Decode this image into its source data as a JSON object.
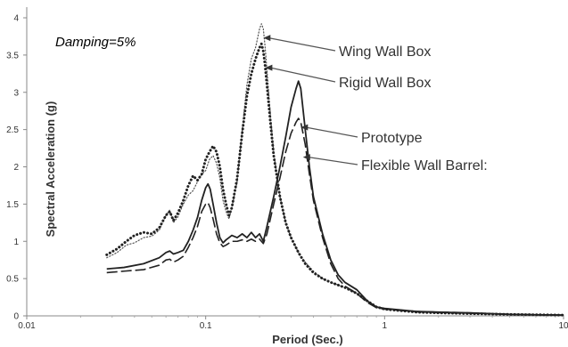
{
  "chart_data": {
    "type": "line",
    "title": "",
    "xlabel": "Period (Sec.)",
    "ylabel": "Spectral  Acceleration (g)",
    "xscale": "log",
    "xlim": [
      0.01,
      10
    ],
    "ylim": [
      0,
      4.2
    ],
    "grid": false,
    "x_ticks": [
      {
        "v": 0.01,
        "label": "0.01"
      },
      {
        "v": 0.1,
        "label": "0.1"
      },
      {
        "v": 1,
        "label": "1"
      },
      {
        "v": 10,
        "label": "10"
      }
    ],
    "y_ticks": [
      {
        "v": 0,
        "label": "0"
      },
      {
        "v": 0.5,
        "label": "0.5"
      },
      {
        "v": 1,
        "label": "1"
      },
      {
        "v": 1.5,
        "label": "1.5"
      },
      {
        "v": 2,
        "label": "2"
      },
      {
        "v": 2.5,
        "label": "2.5"
      },
      {
        "v": 3,
        "label": "3"
      },
      {
        "v": 3.5,
        "label": "3.5"
      },
      {
        "v": 4,
        "label": "4"
      }
    ],
    "annotation": "Damping=5%",
    "series": [
      {
        "name": "Wing Wall Box",
        "style": "dotted-thin",
        "color": "#555555",
        "label_x": 0.21,
        "label_y": 3.73,
        "points": [
          [
            0.028,
            0.78
          ],
          [
            0.032,
            0.85
          ],
          [
            0.036,
            0.95
          ],
          [
            0.04,
            0.98
          ],
          [
            0.045,
            1.05
          ],
          [
            0.05,
            1.07
          ],
          [
            0.055,
            1.15
          ],
          [
            0.06,
            1.35
          ],
          [
            0.063,
            1.42
          ],
          [
            0.066,
            1.25
          ],
          [
            0.07,
            1.33
          ],
          [
            0.075,
            1.5
          ],
          [
            0.08,
            1.62
          ],
          [
            0.085,
            1.68
          ],
          [
            0.09,
            1.8
          ],
          [
            0.095,
            1.9
          ],
          [
            0.1,
            1.95
          ],
          [
            0.105,
            2.1
          ],
          [
            0.11,
            2.15
          ],
          [
            0.115,
            2.05
          ],
          [
            0.12,
            1.85
          ],
          [
            0.125,
            1.55
          ],
          [
            0.13,
            1.4
          ],
          [
            0.135,
            1.3
          ],
          [
            0.14,
            1.45
          ],
          [
            0.15,
            1.8
          ],
          [
            0.16,
            2.5
          ],
          [
            0.17,
            3.1
          ],
          [
            0.18,
            3.45
          ],
          [
            0.19,
            3.6
          ],
          [
            0.2,
            3.85
          ],
          [
            0.205,
            3.92
          ],
          [
            0.21,
            3.85
          ],
          [
            0.215,
            3.6
          ],
          [
            0.22,
            3.3
          ],
          [
            0.23,
            2.7
          ],
          [
            0.24,
            2.2
          ],
          [
            0.26,
            1.6
          ],
          [
            0.28,
            1.25
          ],
          [
            0.3,
            1.05
          ],
          [
            0.33,
            0.85
          ],
          [
            0.36,
            0.72
          ],
          [
            0.4,
            0.6
          ],
          [
            0.45,
            0.5
          ],
          [
            0.5,
            0.45
          ],
          [
            0.6,
            0.38
          ],
          [
            0.7,
            0.3
          ],
          [
            0.8,
            0.2
          ],
          [
            0.9,
            0.12
          ],
          [
            1.0,
            0.09
          ],
          [
            1.5,
            0.05
          ],
          [
            2.0,
            0.04
          ],
          [
            3.0,
            0.03
          ],
          [
            5.0,
            0.02
          ],
          [
            7.0,
            0.015
          ],
          [
            10.0,
            0.01
          ]
        ]
      },
      {
        "name": "Rigid Wall Box",
        "style": "dotted-bold",
        "color": "#222222",
        "label_x": 0.215,
        "label_y": 3.33,
        "points": [
          [
            0.028,
            0.82
          ],
          [
            0.032,
            0.9
          ],
          [
            0.036,
            1.0
          ],
          [
            0.04,
            1.08
          ],
          [
            0.045,
            1.12
          ],
          [
            0.05,
            1.1
          ],
          [
            0.055,
            1.18
          ],
          [
            0.06,
            1.35
          ],
          [
            0.063,
            1.4
          ],
          [
            0.066,
            1.28
          ],
          [
            0.07,
            1.38
          ],
          [
            0.075,
            1.55
          ],
          [
            0.08,
            1.75
          ],
          [
            0.085,
            1.88
          ],
          [
            0.09,
            1.82
          ],
          [
            0.095,
            1.9
          ],
          [
            0.1,
            2.1
          ],
          [
            0.105,
            2.2
          ],
          [
            0.11,
            2.28
          ],
          [
            0.115,
            2.2
          ],
          [
            0.12,
            2.0
          ],
          [
            0.125,
            1.7
          ],
          [
            0.13,
            1.5
          ],
          [
            0.135,
            1.35
          ],
          [
            0.14,
            1.45
          ],
          [
            0.15,
            1.85
          ],
          [
            0.16,
            2.45
          ],
          [
            0.17,
            2.95
          ],
          [
            0.18,
            3.25
          ],
          [
            0.19,
            3.45
          ],
          [
            0.2,
            3.6
          ],
          [
            0.205,
            3.65
          ],
          [
            0.21,
            3.55
          ],
          [
            0.215,
            3.35
          ],
          [
            0.22,
            3.1
          ],
          [
            0.23,
            2.6
          ],
          [
            0.24,
            2.15
          ],
          [
            0.26,
            1.6
          ],
          [
            0.28,
            1.25
          ],
          [
            0.3,
            1.05
          ],
          [
            0.33,
            0.85
          ],
          [
            0.36,
            0.7
          ],
          [
            0.4,
            0.58
          ],
          [
            0.45,
            0.5
          ],
          [
            0.5,
            0.45
          ],
          [
            0.6,
            0.38
          ],
          [
            0.7,
            0.3
          ],
          [
            0.8,
            0.2
          ],
          [
            0.9,
            0.12
          ],
          [
            1.0,
            0.09
          ],
          [
            1.5,
            0.05
          ],
          [
            2.0,
            0.04
          ],
          [
            3.0,
            0.03
          ],
          [
            5.0,
            0.02
          ],
          [
            7.0,
            0.015
          ],
          [
            10.0,
            0.01
          ]
        ]
      },
      {
        "name": "Prototype",
        "style": "solid",
        "color": "#222222",
        "label_x": 0.34,
        "label_y": 2.53,
        "points": [
          [
            0.028,
            0.63
          ],
          [
            0.035,
            0.65
          ],
          [
            0.045,
            0.7
          ],
          [
            0.055,
            0.78
          ],
          [
            0.06,
            0.85
          ],
          [
            0.063,
            0.87
          ],
          [
            0.066,
            0.83
          ],
          [
            0.07,
            0.85
          ],
          [
            0.075,
            0.88
          ],
          [
            0.08,
            1.0
          ],
          [
            0.085,
            1.15
          ],
          [
            0.09,
            1.32
          ],
          [
            0.095,
            1.55
          ],
          [
            0.1,
            1.72
          ],
          [
            0.103,
            1.77
          ],
          [
            0.106,
            1.7
          ],
          [
            0.11,
            1.5
          ],
          [
            0.115,
            1.25
          ],
          [
            0.12,
            1.05
          ],
          [
            0.125,
            0.98
          ],
          [
            0.13,
            1.02
          ],
          [
            0.14,
            1.08
          ],
          [
            0.15,
            1.05
          ],
          [
            0.16,
            1.1
          ],
          [
            0.17,
            1.05
          ],
          [
            0.18,
            1.12
          ],
          [
            0.19,
            1.05
          ],
          [
            0.2,
            1.1
          ],
          [
            0.21,
            1.0
          ],
          [
            0.22,
            1.2
          ],
          [
            0.24,
            1.6
          ],
          [
            0.26,
            2.0
          ],
          [
            0.28,
            2.4
          ],
          [
            0.3,
            2.8
          ],
          [
            0.32,
            3.05
          ],
          [
            0.33,
            3.15
          ],
          [
            0.34,
            3.05
          ],
          [
            0.36,
            2.5
          ],
          [
            0.38,
            2.0
          ],
          [
            0.4,
            1.6
          ],
          [
            0.45,
            1.1
          ],
          [
            0.5,
            0.75
          ],
          [
            0.55,
            0.55
          ],
          [
            0.6,
            0.45
          ],
          [
            0.7,
            0.35
          ],
          [
            0.8,
            0.2
          ],
          [
            0.9,
            0.12
          ],
          [
            1.0,
            0.1
          ],
          [
            1.5,
            0.06
          ],
          [
            2.0,
            0.05
          ],
          [
            3.0,
            0.04
          ],
          [
            5.0,
            0.02
          ],
          [
            7.0,
            0.015
          ],
          [
            10.0,
            0.01
          ]
        ]
      },
      {
        "name": "Flexible Wall Barrel:",
        "style": "dashed",
        "color": "#222222",
        "label_x": 0.35,
        "label_y": 2.13,
        "points": [
          [
            0.028,
            0.58
          ],
          [
            0.035,
            0.6
          ],
          [
            0.045,
            0.62
          ],
          [
            0.055,
            0.68
          ],
          [
            0.06,
            0.75
          ],
          [
            0.063,
            0.76
          ],
          [
            0.066,
            0.72
          ],
          [
            0.07,
            0.75
          ],
          [
            0.075,
            0.8
          ],
          [
            0.08,
            0.92
          ],
          [
            0.085,
            1.05
          ],
          [
            0.09,
            1.2
          ],
          [
            0.095,
            1.4
          ],
          [
            0.1,
            1.5
          ],
          [
            0.103,
            1.52
          ],
          [
            0.106,
            1.45
          ],
          [
            0.11,
            1.3
          ],
          [
            0.115,
            1.1
          ],
          [
            0.12,
            0.98
          ],
          [
            0.125,
            0.93
          ],
          [
            0.13,
            0.95
          ],
          [
            0.14,
            1.0
          ],
          [
            0.15,
            1.0
          ],
          [
            0.16,
            1.02
          ],
          [
            0.17,
            1.0
          ],
          [
            0.18,
            1.03
          ],
          [
            0.19,
            1.0
          ],
          [
            0.2,
            1.03
          ],
          [
            0.21,
            0.97
          ],
          [
            0.22,
            1.1
          ],
          [
            0.24,
            1.5
          ],
          [
            0.26,
            1.85
          ],
          [
            0.28,
            2.2
          ],
          [
            0.3,
            2.45
          ],
          [
            0.32,
            2.6
          ],
          [
            0.33,
            2.65
          ],
          [
            0.34,
            2.6
          ],
          [
            0.36,
            2.3
          ],
          [
            0.38,
            1.9
          ],
          [
            0.4,
            1.55
          ],
          [
            0.45,
            1.05
          ],
          [
            0.5,
            0.7
          ],
          [
            0.55,
            0.5
          ],
          [
            0.6,
            0.4
          ],
          [
            0.7,
            0.3
          ],
          [
            0.8,
            0.18
          ],
          [
            0.9,
            0.11
          ],
          [
            1.0,
            0.09
          ],
          [
            1.5,
            0.06
          ],
          [
            2.0,
            0.05
          ],
          [
            3.0,
            0.04
          ],
          [
            5.0,
            0.02
          ],
          [
            7.0,
            0.015
          ],
          [
            10.0,
            0.01
          ]
        ]
      }
    ]
  }
}
